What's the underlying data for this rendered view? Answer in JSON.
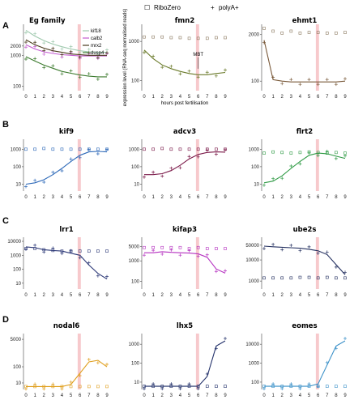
{
  "legend": {
    "ribozero_label": "RiboZero",
    "polya_label": "polyA+",
    "ribozero_symbol": "☐",
    "polya_symbol": "+"
  },
  "colors": {
    "highlight": "#f7c9cc",
    "ribozero": "#8d7b62",
    "axis": "#444444"
  },
  "chart_data": [
    {
      "id": "eg",
      "panel": "A",
      "type": "line",
      "title": "Eg family",
      "x": [
        0,
        1,
        2,
        3,
        4,
        5,
        6,
        7,
        8,
        9
      ],
      "yticks": [
        "2000",
        "1000",
        "100"
      ],
      "ylim": [
        80,
        9000
      ],
      "xlabel": "",
      "ylabel": "",
      "legend": {
        "placement": "right",
        "entries": [
          "kif18",
          "calb2",
          "mrx2",
          "dusp4"
        ]
      },
      "series": [
        {
          "name": "kif18",
          "color": "#9fc9ae",
          "values": [
            6500,
            4200,
            3000,
            2300,
            1900,
            1600,
            1400,
            1300,
            1250,
            1250
          ]
        },
        {
          "name": "calb2",
          "color": "#c35bd0",
          "values": [
            2200,
            1600,
            1300,
            1150,
            1050,
            1000,
            950,
            950,
            950,
            950
          ]
        },
        {
          "name": "mrx2",
          "color": "#4a3a1c",
          "values": [
            3200,
            2200,
            1700,
            1400,
            1250,
            1100,
            1050,
            1000,
            1000,
            1000
          ]
        },
        {
          "name": "dusp4",
          "color": "#3d7b2f",
          "values": [
            900,
            650,
            480,
            380,
            300,
            260,
            230,
            210,
            200,
            200
          ]
        }
      ]
    },
    {
      "id": "fmn2",
      "panel": "",
      "type": "line",
      "title": "fmn2",
      "x": [
        0,
        1,
        2,
        3,
        4,
        5,
        6,
        7,
        8,
        9
      ],
      "yticks": [
        "1000",
        "100"
      ],
      "ylim": [
        60,
        2500
      ],
      "xlabel": "hours post fertilisation",
      "ylabel": "expression level (RNA-seq normalised reads)",
      "annotation": "MBT",
      "color": "#6a7a2a",
      "values": [
        600,
        360,
        250,
        200,
        170,
        150,
        140,
        140,
        150,
        160
      ],
      "ribozero": [
        1300,
        1300,
        1300,
        1250,
        1250,
        1200,
        1200,
        1200,
        1250,
        1250
      ]
    },
    {
      "id": "ehmt1",
      "panel": "",
      "type": "line",
      "title": "ehmt1",
      "x": [
        0,
        1,
        2,
        3,
        4,
        5,
        6,
        7,
        8,
        9
      ],
      "yticks": [
        "2000",
        "100"
      ],
      "ylim": [
        60,
        3500
      ],
      "xlabel": "",
      "ylabel": "",
      "color": "#7a5a3a",
      "values": [
        1400,
        110,
        100,
        95,
        95,
        95,
        95,
        95,
        95,
        100
      ],
      "ribozero": [
        3000,
        2500,
        2200,
        2500,
        2200,
        2300,
        2300,
        2200,
        2200,
        2300
      ]
    },
    {
      "id": "kif9",
      "panel": "B",
      "type": "line",
      "title": "kif9",
      "x": [
        0,
        1,
        2,
        3,
        4,
        5,
        6,
        7,
        8,
        9
      ],
      "yticks": [
        "1000",
        "100",
        "10"
      ],
      "ylim": [
        5,
        3000
      ],
      "xlabel": "",
      "ylabel": "",
      "color": "#2c68b8",
      "values": [
        10,
        12,
        18,
        35,
        80,
        200,
        450,
        700,
        750,
        700
      ],
      "ribozero": [
        1000,
        1000,
        1100,
        1000,
        1000,
        1000,
        1000,
        1000,
        1000,
        1000
      ]
    },
    {
      "id": "adcv3",
      "panel": "",
      "type": "line",
      "title": "adcv3",
      "x": [
        0,
        1,
        2,
        3,
        4,
        5,
        6,
        7,
        8,
        9
      ],
      "yticks": [
        "1000",
        "100",
        "10"
      ],
      "ylim": [
        5,
        3000
      ],
      "xlabel": "",
      "ylabel": "",
      "color": "#7a1848",
      "values": [
        35,
        35,
        40,
        60,
        120,
        280,
        500,
        650,
        700,
        680
      ],
      "ribozero": [
        1000,
        1000,
        1100,
        1000,
        1000,
        1000,
        1000,
        1000,
        1000,
        1000
      ]
    },
    {
      "id": "flrt2",
      "panel": "",
      "type": "line",
      "title": "flrt2",
      "x": [
        0,
        1,
        2,
        3,
        4,
        5,
        6,
        7,
        8,
        9
      ],
      "yticks": [
        "1000",
        "100",
        "10"
      ],
      "ylim": [
        5,
        3000
      ],
      "xlabel": "",
      "ylabel": "",
      "color": "#2e9a44",
      "values": [
        12,
        15,
        30,
        80,
        200,
        450,
        600,
        550,
        400,
        300
      ],
      "ribozero": [
        600,
        700,
        650,
        600,
        650,
        700,
        650,
        600,
        650,
        600
      ]
    },
    {
      "id": "lrr1",
      "panel": "C",
      "type": "line",
      "title": "lrr1",
      "x": [
        0,
        1,
        2,
        3,
        4,
        5,
        6,
        7,
        8,
        9
      ],
      "yticks": [
        "10000",
        "1000",
        "100",
        "10"
      ],
      "ylim": [
        5,
        15000
      ],
      "xlabel": "",
      "ylabel": "",
      "color": "#2e3a78",
      "values": [
        4000,
        3500,
        2500,
        2200,
        2000,
        1400,
        1000,
        200,
        50,
        20
      ],
      "ribozero": [
        3000,
        3000,
        2500,
        2200,
        2000,
        2000,
        2000,
        2000,
        2000,
        2000
      ]
    },
    {
      "id": "kifap3",
      "panel": "",
      "type": "line",
      "title": "kifap3",
      "x": [
        0,
        1,
        2,
        3,
        4,
        5,
        6,
        7,
        8,
        9
      ],
      "yticks": [
        "5000",
        "1000",
        "100"
      ],
      "ylim": [
        50,
        12000
      ],
      "xlabel": "",
      "ylabel": "",
      "color": "#b530c0",
      "values": [
        2500,
        2500,
        2800,
        2600,
        2500,
        2400,
        2200,
        1500,
        400,
        250
      ],
      "ribozero": [
        4500,
        4500,
        4500,
        4500,
        4500,
        4000,
        4500,
        4000,
        4000,
        4000
      ]
    },
    {
      "id": "ube2s",
      "panel": "",
      "type": "line",
      "title": "ube2s",
      "x": [
        0,
        1,
        2,
        3,
        4,
        5,
        6,
        7,
        8,
        9
      ],
      "yticks": [
        "50000",
        "10000",
        "1000"
      ],
      "ylim": [
        500,
        100000
      ],
      "xlabel": "",
      "ylabel": "",
      "color": "#243060",
      "values": [
        45000,
        42000,
        40000,
        38000,
        36000,
        32000,
        27000,
        18000,
        6000,
        2000
      ],
      "ribozero": [
        1400,
        1400,
        1400,
        1400,
        1500,
        1500,
        1400,
        1500,
        1400,
        1400
      ]
    },
    {
      "id": "nodal6",
      "panel": "D",
      "type": "line",
      "title": "nodal6",
      "x": [
        0,
        1,
        2,
        3,
        4,
        5,
        6,
        7,
        8,
        9
      ],
      "yticks": [
        "5000",
        "100",
        "10"
      ],
      "ylim": [
        5,
        9000
      ],
      "xlabel": "",
      "ylabel": "",
      "color": "#e0a020",
      "values": [
        6,
        6,
        6,
        6,
        6,
        8,
        40,
        200,
        250,
        100
      ],
      "ribozero": [
        6,
        6,
        6,
        6,
        6,
        6,
        6,
        6,
        6,
        6
      ]
    },
    {
      "id": "lhx5",
      "panel": "",
      "type": "line",
      "title": "lhx5",
      "x": [
        0,
        1,
        2,
        3,
        4,
        5,
        6,
        7,
        8,
        9
      ],
      "yticks": [
        "1000",
        "100",
        "10"
      ],
      "ylim": [
        5,
        3000
      ],
      "xlabel": "",
      "ylabel": "",
      "color": "#22306a",
      "values": [
        6,
        6,
        6,
        6,
        6,
        6,
        6,
        20,
        800,
        1500
      ],
      "ribozero": [
        6,
        6,
        6,
        6,
        6,
        6,
        6,
        6,
        6,
        6
      ]
    },
    {
      "id": "eomes",
      "panel": "",
      "type": "line",
      "title": "eomes",
      "x": [
        0,
        1,
        2,
        3,
        4,
        5,
        6,
        7,
        8,
        9
      ],
      "yticks": [
        "10000",
        "1000",
        "100"
      ],
      "ylim": [
        50,
        30000
      ],
      "xlabel": "",
      "ylabel": "",
      "color": "#3a90c8",
      "values": [
        60,
        60,
        60,
        60,
        60,
        60,
        80,
        800,
        8000,
        15000
      ],
      "ribozero": [
        60,
        60,
        60,
        60,
        60,
        60,
        60,
        60,
        60,
        60
      ]
    }
  ]
}
